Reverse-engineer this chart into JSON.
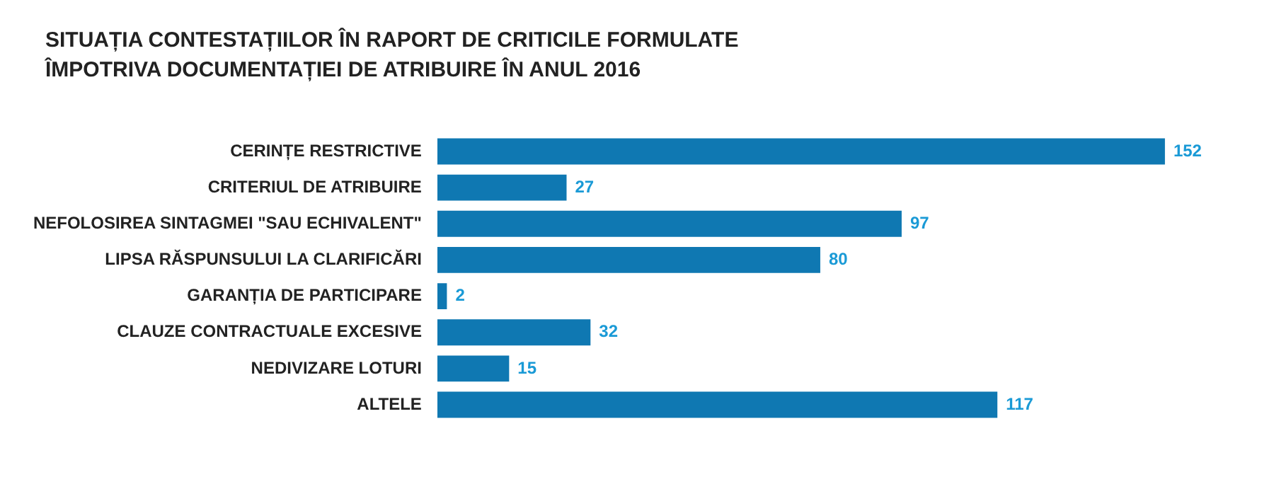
{
  "chart_data": {
    "type": "bar",
    "orientation": "horizontal",
    "title": "SITUAȚIA CONTESTAȚIILOR ÎN RAPORT DE CRITICILE FORMULATE ÎMPOTRIVA DOCUMENTAȚIEI DE ATRIBUIRE ÎN ANUL 2016",
    "categories": [
      "CERINȚE RESTRICTIVE",
      "CRITERIUL DE ATRIBUIRE",
      "NEFOLOSIREA SINTAGMEI \"SAU ECHIVALENT\"",
      "LIPSA RĂSPUNSULUI LA CLARIFICĂRI",
      "GARANȚIA DE PARTICIPARE",
      "CLAUZE CONTRACTUALE EXCESIVE",
      "NEDIVIZARE LOTURI",
      "ALTELE"
    ],
    "values": [
      152,
      27,
      97,
      80,
      2,
      32,
      15,
      117
    ],
    "color": "#0f78b2",
    "data_labels": true,
    "tick_labels": "y"
  }
}
